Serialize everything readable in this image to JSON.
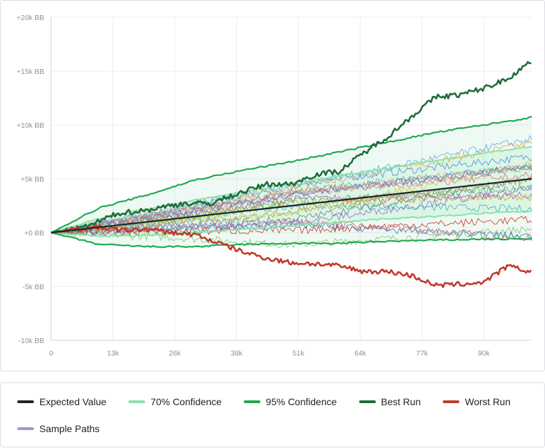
{
  "chart_data": {
    "type": "line",
    "title": "",
    "xlabel": "",
    "ylabel": "",
    "x_ticks": [
      "0",
      "13k",
      "26k",
      "38k",
      "51k",
      "64k",
      "77k",
      "90k"
    ],
    "x_tick_values": [
      0,
      12857,
      25714,
      38571,
      51429,
      64286,
      77143,
      90000
    ],
    "xlim": [
      0,
      100000
    ],
    "y_ticks": [
      "-10k BB",
      "-5k BB",
      "+0 BB",
      "+5k BB",
      "+10k BB",
      "+15k BB",
      "+20k BB"
    ],
    "y_tick_values": [
      -10000,
      -5000,
      0,
      5000,
      10000,
      15000,
      20000
    ],
    "ylim": [
      -10000,
      20000
    ],
    "grid": true,
    "legend_position": "bottom",
    "series": [
      {
        "name": "Expected Value",
        "color": "#1f2328",
        "x": [
          0,
          100000
        ],
        "y": [
          0,
          5000
        ]
      },
      {
        "name": "70% Confidence",
        "color": "#86e3a8",
        "x": [
          0,
          10000,
          20000,
          30000,
          40000,
          50000,
          60000,
          70000,
          80000,
          90000,
          100000
        ],
        "y_upper": [
          0,
          1300,
          2200,
          3000,
          3800,
          4600,
          5300,
          6000,
          6700,
          7400,
          8000
        ],
        "y_lower": [
          0,
          -350,
          -250,
          0,
          300,
          650,
          1000,
          1300,
          1500,
          1800,
          2000
        ]
      },
      {
        "name": "95% Confidence",
        "color": "#1faa50",
        "x": [
          0,
          10000,
          20000,
          30000,
          40000,
          50000,
          60000,
          70000,
          80000,
          90000,
          100000
        ],
        "y_upper": [
          0,
          2300,
          3500,
          4900,
          5800,
          6600,
          7500,
          8400,
          9300,
          10000,
          10700
        ],
        "y_lower": [
          0,
          -1100,
          -1300,
          -1300,
          -1100,
          -1000,
          -1000,
          -800,
          -700,
          -600,
          -600
        ]
      },
      {
        "name": "Best Run",
        "color": "#1f6b3a",
        "x": [
          0,
          7000,
          14000,
          20000,
          27000,
          33000,
          40000,
          45000,
          50000,
          55000,
          60000,
          65000,
          70000,
          75000,
          80000,
          85000,
          90000,
          95000,
          100000
        ],
        "y": [
          0,
          500,
          1800,
          2100,
          2700,
          2700,
          3800,
          4500,
          4500,
          5400,
          5700,
          7400,
          8900,
          10800,
          12600,
          12800,
          13400,
          14300,
          16000
        ]
      },
      {
        "name": "Worst Run",
        "color": "#c0392b",
        "x": [
          0,
          5000,
          10000,
          15000,
          20000,
          25000,
          30000,
          35000,
          40000,
          45000,
          50000,
          55000,
          60000,
          65000,
          70000,
          75000,
          80000,
          85000,
          90000,
          95000,
          100000
        ],
        "y": [
          0,
          300,
          500,
          200,
          300,
          0,
          -200,
          -1000,
          -1800,
          -2400,
          -2800,
          -2900,
          -3100,
          -3600,
          -3600,
          -4000,
          -4900,
          -4800,
          -4600,
          -3100,
          -3700
        ]
      },
      {
        "name": "Sample Paths",
        "color": "#a38fe0"
      }
    ]
  },
  "legend": [
    {
      "label": "Expected Value",
      "color": "#1f2328"
    },
    {
      "label": "70% Confidence",
      "color": "#86e3a8"
    },
    {
      "label": "95% Confidence",
      "color": "#1faa50"
    },
    {
      "label": "Best Run",
      "color": "#1f6b3a"
    },
    {
      "label": "Worst Run",
      "color": "#c0392b"
    },
    {
      "label": "Sample Paths",
      "color": "#a38fe0"
    }
  ],
  "sample_path_colors": [
    "#d94f6a",
    "#e8a23a",
    "#4a90d9",
    "#7bc96f",
    "#9b59b6",
    "#3bb6b0",
    "#f08c6a",
    "#6c7a89",
    "#c9c93a",
    "#5dade2",
    "#e07ab0",
    "#58b368",
    "#d4a017",
    "#8e6fd6",
    "#2e86c1",
    "#c0392b",
    "#48c9b0",
    "#b0a24a",
    "#e57373",
    "#5c6bc0"
  ]
}
